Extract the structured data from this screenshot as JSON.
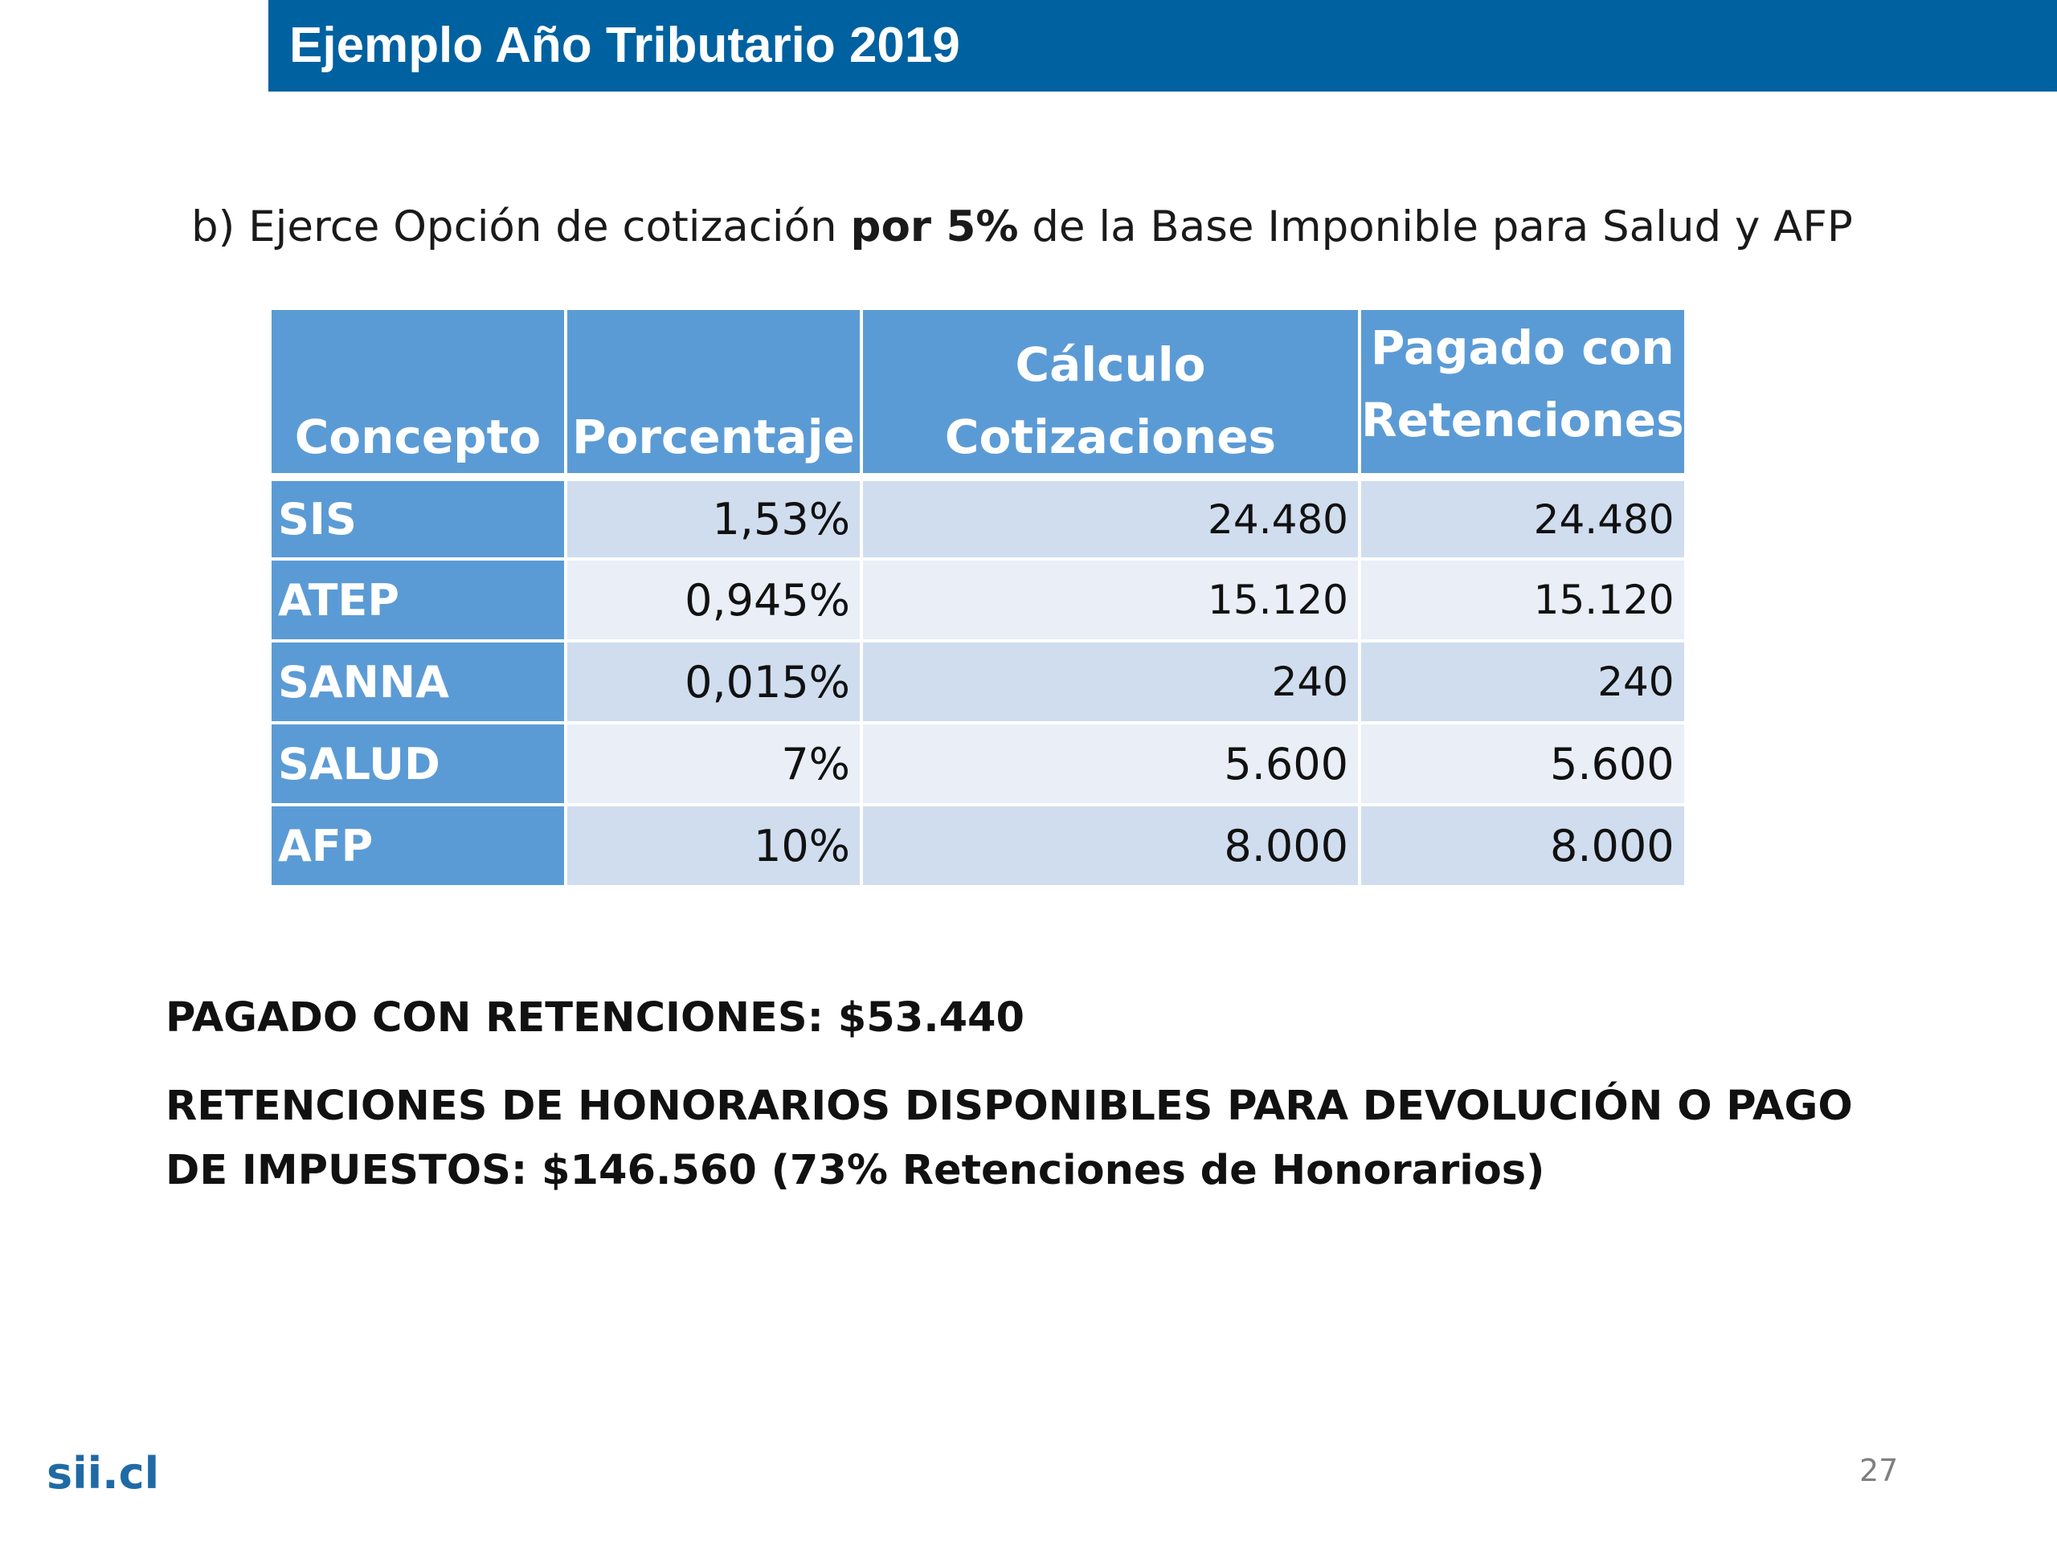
{
  "header": {
    "title": "Ejemplo Año Tributario 2019"
  },
  "subtitle": {
    "prefix": "b) Ejerce Opción de cotización ",
    "bold": "por 5%",
    "suffix": " de la Base Imponible para Salud y AFP"
  },
  "table": {
    "headers": {
      "concepto": "Concepto",
      "porcentaje": "Porcentaje",
      "calculo_line1": "Cálculo",
      "calculo_line2": "Cotizaciones",
      "pagado_line1": "Pagado con",
      "pagado_line2": "Retenciones"
    },
    "rows": [
      {
        "concepto": "SIS",
        "porcentaje": "1,53%",
        "calculo": "24.480",
        "pagado": "24.480"
      },
      {
        "concepto": "ATEP",
        "porcentaje": "0,945%",
        "calculo": "15.120",
        "pagado": "15.120"
      },
      {
        "concepto": "SANNA",
        "porcentaje": "0,015%",
        "calculo": "240",
        "pagado": "240"
      },
      {
        "concepto": "SALUD",
        "porcentaje": "7%",
        "calculo": "5.600",
        "pagado": "5.600"
      },
      {
        "concepto": "AFP",
        "porcentaje": "10%",
        "calculo": "8.000",
        "pagado": "8.000"
      }
    ]
  },
  "summary": {
    "line1": "PAGADO CON RETENCIONES: $53.440",
    "line2": "RETENCIONES DE HONORARIOS DISPONIBLES PARA DEVOLUCIÓN O PAGO DE IMPUESTOS: $146.560 (73% Retenciones de Honorarios)"
  },
  "footer": {
    "logo": "sii.cl",
    "page_number": "27"
  },
  "colors": {
    "title_bar": "#0061a0",
    "header_cell": "#5b9bd5",
    "row_dark": "#d0ddee",
    "row_light": "#e9eef7",
    "logo": "#1f6aa5"
  }
}
